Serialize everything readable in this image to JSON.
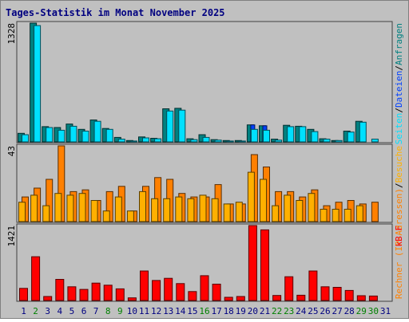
{
  "title": "Tages-Statistik im Monat November 2025",
  "colors": {
    "background": "#c0c0c0",
    "title": "#000080",
    "hits": "#008080",
    "files": "#0040ff",
    "pages": "#00e0ff",
    "visits": "#ffb000",
    "sites": "#ff8000",
    "kbytes": "#ff0000",
    "weekday_label": "#000080",
    "weekend_label": "#008000"
  },
  "chart_data": [
    {
      "type": "bar",
      "title": "Tages-Statistik im Monat November 2025",
      "ymax_label": "1328",
      "legend": [
        {
          "text": "Anfragen",
          "color": "#008080"
        },
        {
          "text": "Dateien",
          "color": "#0040ff"
        },
        {
          "text": "Seiten",
          "color": "#00e0ff"
        }
      ],
      "legend_separators": [
        "/",
        "/"
      ],
      "ylim": [
        0,
        1328
      ],
      "categories": [
        "1",
        "2",
        "3",
        "4",
        "5",
        "6",
        "7",
        "8",
        "9",
        "10",
        "11",
        "12",
        "13",
        "14",
        "15",
        "16",
        "17",
        "18",
        "19",
        "20",
        "21",
        "22",
        "23",
        "24",
        "25",
        "26",
        "27",
        "28",
        "29",
        "30",
        "31"
      ],
      "series": [
        {
          "name": "Anfragen",
          "values": [
            95,
            1328,
            170,
            160,
            200,
            140,
            245,
            150,
            50,
            15,
            55,
            40,
            370,
            375,
            35,
            80,
            25,
            15,
            15,
            190,
            180,
            30,
            185,
            175,
            140,
            35,
            15,
            120,
            230,
            0,
            0
          ]
        },
        {
          "name": "Dateien",
          "values": [
            0,
            0,
            0,
            0,
            0,
            0,
            0,
            0,
            0,
            0,
            0,
            0,
            0,
            0,
            0,
            0,
            0,
            0,
            0,
            190,
            180,
            0,
            0,
            0,
            0,
            0,
            0,
            0,
            0,
            0,
            0
          ]
        },
        {
          "name": "Seiten",
          "values": [
            80,
            1300,
            160,
            130,
            175,
            120,
            230,
            140,
            30,
            10,
            45,
            35,
            345,
            355,
            25,
            50,
            20,
            10,
            10,
            140,
            130,
            20,
            170,
            170,
            115,
            30,
            15,
            110,
            220,
            30,
            0
          ]
        }
      ]
    },
    {
      "type": "bar",
      "ymax_label": "43",
      "legend": [
        {
          "text": "Besuche",
          "color": "#ffb000"
        },
        {
          "text": "Rechner (IP-Adressen)",
          "color": "#ff8000"
        }
      ],
      "legend_separators": [
        "/"
      ],
      "ylim": [
        0,
        43
      ],
      "categories": [
        "1",
        "2",
        "3",
        "4",
        "5",
        "6",
        "7",
        "8",
        "9",
        "10",
        "11",
        "12",
        "13",
        "14",
        "15",
        "16",
        "17",
        "18",
        "19",
        "20",
        "21",
        "22",
        "23",
        "24",
        "25",
        "26",
        "27",
        "28",
        "29",
        "30",
        "31"
      ],
      "series": [
        {
          "name": "Besuche",
          "values": [
            11,
            15,
            9,
            16,
            15,
            16,
            12,
            6,
            14,
            6,
            17,
            13,
            13,
            14,
            13,
            15,
            13,
            10,
            11,
            28,
            24,
            9,
            15,
            12,
            16,
            7,
            7,
            7,
            9,
            0,
            0
          ]
        },
        {
          "name": "Rechner (IP-Adressen)",
          "values": [
            14,
            19,
            24,
            43,
            17,
            18,
            12,
            17,
            20,
            6,
            20,
            25,
            24,
            16,
            14,
            14,
            21,
            10,
            10,
            38,
            31,
            17,
            17,
            14,
            18,
            9,
            11,
            12,
            10,
            11,
            0
          ]
        }
      ]
    },
    {
      "type": "bar",
      "ymax_label": "1421",
      "legend": [
        {
          "text": "kB F",
          "color": "#ff0000"
        }
      ],
      "legend_separators": [],
      "ylim": [
        0,
        1421
      ],
      "categories": [
        "1",
        "2",
        "3",
        "4",
        "5",
        "6",
        "7",
        "8",
        "9",
        "10",
        "11",
        "12",
        "13",
        "14",
        "15",
        "16",
        "17",
        "18",
        "19",
        "20",
        "21",
        "22",
        "23",
        "24",
        "25",
        "26",
        "27",
        "28",
        "29",
        "30",
        "31"
      ],
      "series": [
        {
          "name": "kB F",
          "values": [
            230,
            830,
            75,
            400,
            260,
            210,
            330,
            290,
            220,
            50,
            560,
            380,
            420,
            320,
            170,
            470,
            310,
            60,
            75,
            1421,
            1340,
            95,
            450,
            100,
            560,
            260,
            250,
            190,
            90,
            85,
            0
          ]
        }
      ]
    }
  ],
  "day_labels": [
    {
      "text": "1",
      "weekend": false
    },
    {
      "text": "2",
      "weekend": true
    },
    {
      "text": "3",
      "weekend": false
    },
    {
      "text": "4",
      "weekend": false
    },
    {
      "text": "5",
      "weekend": false
    },
    {
      "text": "6",
      "weekend": false
    },
    {
      "text": "7",
      "weekend": false
    },
    {
      "text": "8",
      "weekend": true
    },
    {
      "text": "9",
      "weekend": true
    },
    {
      "text": "10",
      "weekend": false
    },
    {
      "text": "11",
      "weekend": false
    },
    {
      "text": "12",
      "weekend": false
    },
    {
      "text": "13",
      "weekend": false
    },
    {
      "text": "14",
      "weekend": false
    },
    {
      "text": "15",
      "weekend": false
    },
    {
      "text": "16",
      "weekend": true
    },
    {
      "text": "17",
      "weekend": false
    },
    {
      "text": "18",
      "weekend": false
    },
    {
      "text": "19",
      "weekend": false
    },
    {
      "text": "20",
      "weekend": false
    },
    {
      "text": "21",
      "weekend": false
    },
    {
      "text": "22",
      "weekend": true
    },
    {
      "text": "23",
      "weekend": true
    },
    {
      "text": "24",
      "weekend": false
    },
    {
      "text": "25",
      "weekend": false
    },
    {
      "text": "26",
      "weekend": false
    },
    {
      "text": "27",
      "weekend": false
    },
    {
      "text": "28",
      "weekend": false
    },
    {
      "text": "29",
      "weekend": true
    },
    {
      "text": "30",
      "weekend": true
    },
    {
      "text": "31",
      "weekend": false
    }
  ]
}
